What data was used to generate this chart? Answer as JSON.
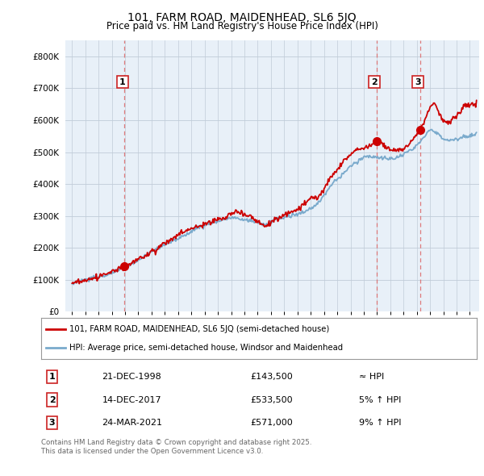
{
  "title": "101, FARM ROAD, MAIDENHEAD, SL6 5JQ",
  "subtitle": "Price paid vs. HM Land Registry's House Price Index (HPI)",
  "legend_line1": "101, FARM ROAD, MAIDENHEAD, SL6 5JQ (semi-detached house)",
  "legend_line2": "HPI: Average price, semi-detached house, Windsor and Maidenhead",
  "transactions": [
    {
      "num": 1,
      "date": "21-DEC-1998",
      "price": 143500,
      "x": 1998.97,
      "note": "≈ HPI"
    },
    {
      "num": 2,
      "date": "14-DEC-2017",
      "price": 533500,
      "x": 2017.95,
      "note": "5% ↑ HPI"
    },
    {
      "num": 3,
      "date": "24-MAR-2021",
      "price": 571000,
      "x": 2021.23,
      "note": "9% ↑ HPI"
    }
  ],
  "footer_line1": "Contains HM Land Registry data © Crown copyright and database right 2025.",
  "footer_line2": "This data is licensed under the Open Government Licence v3.0.",
  "price_line_color": "#cc0000",
  "hpi_line_color": "#7aaacc",
  "chart_bg_color": "#e8f0f8",
  "background_color": "#ffffff",
  "grid_color": "#c0ccd8",
  "vline_color": "#dd6666",
  "ylim": [
    0,
    850000
  ],
  "yticks": [
    0,
    100000,
    200000,
    300000,
    400000,
    500000,
    600000,
    700000,
    800000
  ],
  "xlim": [
    1994.5,
    2025.7
  ],
  "xticks": [
    1995,
    1996,
    1997,
    1998,
    1999,
    2000,
    2001,
    2002,
    2003,
    2004,
    2005,
    2006,
    2007,
    2008,
    2009,
    2010,
    2011,
    2012,
    2013,
    2014,
    2015,
    2016,
    2017,
    2018,
    2019,
    2020,
    2021,
    2022,
    2023,
    2024,
    2025
  ]
}
